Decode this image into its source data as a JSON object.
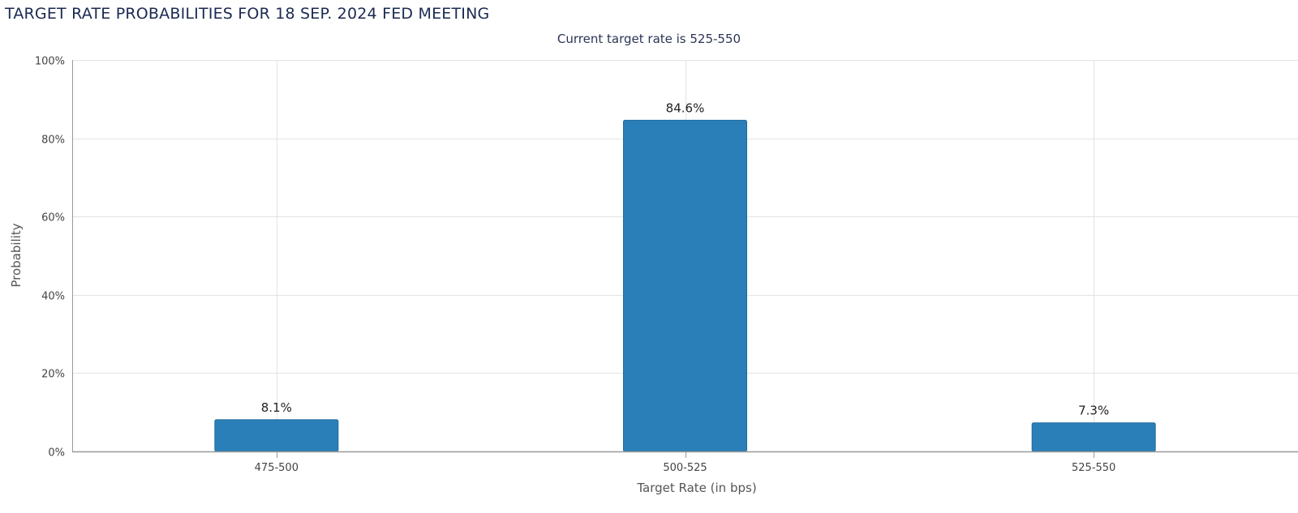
{
  "chart_data": {
    "type": "bar",
    "title": "TARGET RATE PROBABILITIES FOR 18 SEP. 2024 FED MEETING",
    "subtitle": "Current target rate is 525-550",
    "xlabel": "Target Rate (in bps)",
    "ylabel": "Probability",
    "categories": [
      "475-500",
      "500-525",
      "525-550"
    ],
    "values": [
      8.1,
      84.6,
      7.3
    ],
    "data_labels": [
      "8.1%",
      "84.6%",
      "7.3%"
    ],
    "ylim": [
      0,
      100
    ],
    "yticks": [
      0,
      20,
      40,
      60,
      80,
      100
    ],
    "ytick_labels": [
      "0%",
      "20%",
      "40%",
      "60%",
      "80%",
      "100%"
    ],
    "grid": true,
    "legend": "none",
    "bar_color": "#2a7fb8"
  }
}
